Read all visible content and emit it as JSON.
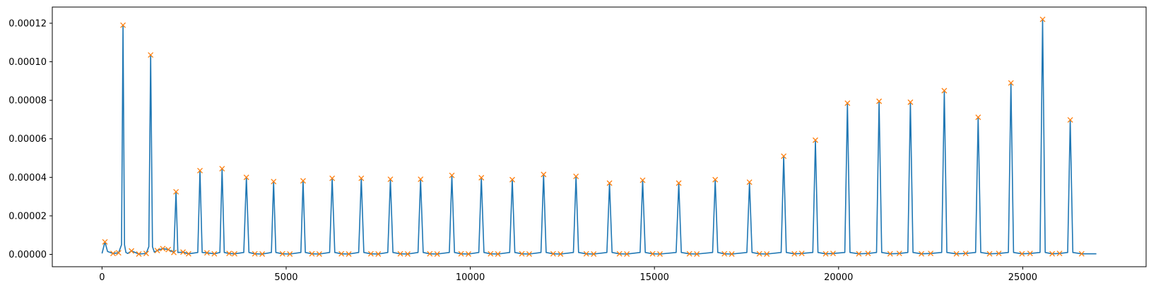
{
  "chart_data": {
    "type": "line",
    "title": "",
    "xlabel": "",
    "ylabel": "",
    "xlim": [
      -1350,
      28350
    ],
    "ylim": [
      -6.4e-06,
      0.0001284
    ],
    "grid": false,
    "legend": "none",
    "x_ticks": [
      0,
      5000,
      10000,
      15000,
      20000,
      25000
    ],
    "x_tick_labels": [
      "0",
      "5000",
      "10000",
      "15000",
      "20000",
      "25000"
    ],
    "y_ticks": [
      0,
      2e-05,
      4e-05,
      6e-05,
      8e-05,
      0.0001,
      0.00012
    ],
    "y_tick_labels": [
      "0.00000",
      "0.00002",
      "0.00004",
      "0.00006",
      "0.00008",
      "0.00010",
      "0.00012"
    ],
    "colors": {
      "signal": "#1f77b4",
      "peaks": "#ff7f0e"
    },
    "series": [
      {
        "style": "line",
        "color": "#1f77b4",
        "x": [
          0,
          80,
          150,
          300,
          450,
          530,
          570,
          610,
          650,
          700,
          800,
          1000,
          1200,
          1270,
          1320,
          1370,
          1420,
          1500,
          1650,
          1800,
          1950,
          2010,
          2060,
          2200,
          2350,
          2600,
          2660,
          2720,
          2850,
          3050,
          3200,
          3260,
          3320,
          3450,
          3600,
          3850,
          3920,
          3990,
          4150,
          4350,
          4600,
          4660,
          4720,
          4900,
          5100,
          5400,
          5460,
          5520,
          5700,
          5900,
          6180,
          6250,
          6320,
          6500,
          6700,
          6970,
          7040,
          7110,
          7300,
          7500,
          7760,
          7830,
          7900,
          8100,
          8300,
          8580,
          8650,
          8720,
          8900,
          9100,
          9430,
          9500,
          9570,
          9750,
          9950,
          10230,
          10300,
          10370,
          10550,
          10750,
          11070,
          11140,
          11210,
          11400,
          11600,
          11920,
          11990,
          12060,
          12250,
          12450,
          12800,
          12870,
          12940,
          13150,
          13350,
          13710,
          13780,
          13850,
          14050,
          14250,
          14610,
          14680,
          14750,
          14950,
          15150,
          15590,
          15660,
          15730,
          15950,
          16150,
          16580,
          16650,
          16720,
          16900,
          17100,
          17510,
          17580,
          17650,
          17850,
          18050,
          18440,
          18510,
          18580,
          18800,
          19000,
          19300,
          19370,
          19440,
          19650,
          19850,
          20170,
          20240,
          20310,
          20550,
          20800,
          21030,
          21100,
          21170,
          21400,
          21650,
          21880,
          21950,
          22020,
          22250,
          22500,
          22800,
          22870,
          22940,
          23200,
          23450,
          23720,
          23790,
          23860,
          24100,
          24350,
          24610,
          24680,
          24750,
          24980,
          25200,
          25470,
          25540,
          25610,
          25800,
          26000,
          26220,
          26290,
          26360,
          26600,
          27000
        ],
        "y": [
          5e-07,
          6.5e-06,
          1.5e-06,
          5e-07,
          8e-07,
          5e-06,
          0.000119,
          5e-06,
          1e-06,
          5e-07,
          1.8e-06,
          2e-07,
          5e-07,
          4e-06,
          0.0001035,
          4e-06,
          1.2e-06,
          2e-06,
          3e-06,
          2.5e-06,
          1e-06,
          3.25e-05,
          1e-06,
          1.2e-06,
          3e-07,
          1e-06,
          4.35e-05,
          1e-06,
          8e-07,
          3e-07,
          1e-06,
          4.45e-05,
          1e-06,
          5e-07,
          3e-07,
          1e-06,
          4e-05,
          1e-06,
          3e-07,
          2e-07,
          1e-06,
          3.78e-05,
          1e-06,
          3e-07,
          2e-07,
          1e-06,
          3.82e-05,
          1e-06,
          3e-07,
          2e-07,
          1e-06,
          3.95e-05,
          1e-06,
          3e-07,
          2e-07,
          1e-06,
          3.95e-05,
          1e-06,
          3e-07,
          2e-07,
          1e-06,
          3.9e-05,
          1e-06,
          3e-07,
          2e-07,
          1e-06,
          3.9e-05,
          1e-06,
          3e-07,
          2e-07,
          1e-06,
          4.1e-05,
          1e-06,
          3e-07,
          2e-07,
          1e-06,
          3.98e-05,
          1e-06,
          3e-07,
          2e-07,
          1e-06,
          3.88e-05,
          1e-06,
          3e-07,
          2e-07,
          1e-06,
          4.15e-05,
          1e-06,
          3e-07,
          2e-07,
          1e-06,
          4.05e-05,
          1e-06,
          3e-07,
          2e-07,
          1e-06,
          3.7e-05,
          1e-06,
          3e-07,
          2e-07,
          1e-06,
          3.85e-05,
          1e-06,
          3e-07,
          2e-07,
          1e-06,
          3.7e-05,
          1e-06,
          3e-07,
          2e-07,
          1e-06,
          3.88e-05,
          1e-06,
          3e-07,
          2e-07,
          1e-06,
          3.75e-05,
          1e-06,
          3e-07,
          2e-07,
          1e-06,
          5.1e-05,
          1e-06,
          3e-07,
          5e-07,
          1e-06,
          5.93e-05,
          1e-06,
          3e-07,
          5e-07,
          1e-06,
          7.85e-05,
          1e-06,
          3e-07,
          5e-07,
          1e-06,
          7.95e-05,
          1e-06,
          3e-07,
          5e-07,
          1e-06,
          7.9e-05,
          1e-06,
          3e-07,
          5e-07,
          1e-06,
          8.5e-05,
          1e-06,
          3e-07,
          5e-07,
          1e-06,
          7.12e-05,
          1e-06,
          3e-07,
          5e-07,
          1e-06,
          8.9e-05,
          1e-06,
          3e-07,
          5e-07,
          1e-06,
          0.000122,
          1e-06,
          3e-07,
          5e-07,
          1e-06,
          6.98e-05,
          1e-06,
          3e-07,
          3e-07
        ]
      },
      {
        "style": "markers",
        "marker": "x",
        "color": "#ff7f0e",
        "x": [
          80,
          300,
          450,
          570,
          800,
          1000,
          1200,
          1320,
          1500,
          1650,
          1800,
          1950,
          2010,
          2200,
          2350,
          2660,
          2850,
          3050,
          3260,
          3450,
          3600,
          3920,
          4150,
          4350,
          4660,
          4900,
          5100,
          5460,
          5700,
          5900,
          6250,
          6500,
          6700,
          7040,
          7300,
          7500,
          7830,
          8100,
          8300,
          8650,
          8900,
          9100,
          9500,
          9750,
          9950,
          10300,
          10550,
          10750,
          11140,
          11400,
          11600,
          11990,
          12250,
          12450,
          12870,
          13150,
          13350,
          13780,
          14050,
          14250,
          14680,
          14950,
          15150,
          15660,
          15950,
          16150,
          16650,
          16900,
          17100,
          17580,
          17850,
          18050,
          18510,
          18800,
          19000,
          19370,
          19650,
          19850,
          20240,
          20550,
          20800,
          21100,
          21400,
          21650,
          21950,
          22250,
          22500,
          22870,
          23200,
          23450,
          23790,
          24100,
          24350,
          24680,
          24980,
          25200,
          25540,
          25800,
          26000,
          26290,
          26600
        ],
        "y": [
          6.5e-06,
          5e-07,
          8e-07,
          0.000119,
          1.8e-06,
          2e-07,
          5e-07,
          0.0001035,
          2e-06,
          3e-06,
          2.5e-06,
          1e-06,
          3.25e-05,
          1.2e-06,
          3e-07,
          4.35e-05,
          8e-07,
          3e-07,
          4.45e-05,
          5e-07,
          3e-07,
          4e-05,
          3e-07,
          2e-07,
          3.78e-05,
          3e-07,
          2e-07,
          3.82e-05,
          3e-07,
          2e-07,
          3.95e-05,
          3e-07,
          2e-07,
          3.95e-05,
          3e-07,
          2e-07,
          3.9e-05,
          3e-07,
          2e-07,
          3.9e-05,
          3e-07,
          2e-07,
          4.1e-05,
          3e-07,
          2e-07,
          3.98e-05,
          3e-07,
          2e-07,
          3.88e-05,
          3e-07,
          2e-07,
          4.15e-05,
          3e-07,
          2e-07,
          4.05e-05,
          3e-07,
          2e-07,
          3.7e-05,
          3e-07,
          2e-07,
          3.85e-05,
          3e-07,
          2e-07,
          3.7e-05,
          3e-07,
          2e-07,
          3.88e-05,
          3e-07,
          2e-07,
          3.75e-05,
          3e-07,
          2e-07,
          5.1e-05,
          3e-07,
          5e-07,
          5.93e-05,
          3e-07,
          5e-07,
          7.85e-05,
          3e-07,
          5e-07,
          7.95e-05,
          3e-07,
          5e-07,
          7.9e-05,
          3e-07,
          5e-07,
          8.5e-05,
          3e-07,
          5e-07,
          7.12e-05,
          3e-07,
          5e-07,
          8.9e-05,
          3e-07,
          5e-07,
          0.000122,
          3e-07,
          5e-07,
          6.98e-05,
          3e-07
        ]
      }
    ]
  }
}
